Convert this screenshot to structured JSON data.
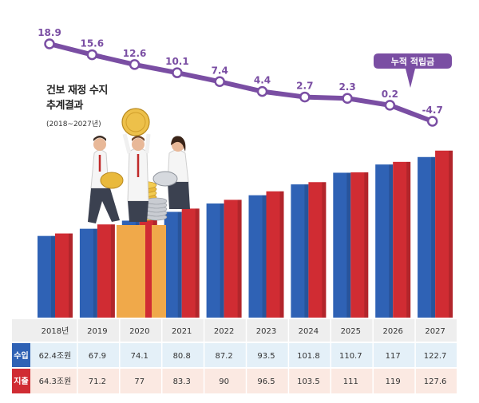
{
  "title_line1": "건보 재정 수지",
  "title_line2": "추계결과",
  "subtitle": "(2018~2027년)",
  "callout": "누적 적립금",
  "chart_data": {
    "type": "bar",
    "title": "건보 재정 수지 추계결과 (2018~2027년)",
    "categories": [
      "2018년",
      "2019",
      "2020",
      "2021",
      "2022",
      "2023",
      "2024",
      "2025",
      "2026",
      "2027"
    ],
    "series": [
      {
        "name": "수입",
        "values": [
          62.4,
          67.9,
          74.1,
          80.8,
          87.2,
          93.5,
          101.8,
          110.7,
          117,
          122.7
        ],
        "labels": [
          "62.4조원",
          "67.9",
          "74.1",
          "80.8",
          "87.2",
          "93.5",
          "101.8",
          "110.7",
          "117",
          "122.7"
        ],
        "color": "#2f62b5"
      },
      {
        "name": "지출",
        "values": [
          64.3,
          71.2,
          77,
          83.3,
          90,
          96.5,
          103.5,
          111,
          119,
          127.6
        ],
        "labels": [
          "64.3조원",
          "71.2",
          "77",
          "83.3",
          "90",
          "96.5",
          "103.5",
          "111",
          "119",
          "127.6"
        ],
        "color": "#d02c33"
      }
    ],
    "line": {
      "name": "누적 적립금",
      "values": [
        18.9,
        15.6,
        12.6,
        10.1,
        7.4,
        4.4,
        2.7,
        2.3,
        0.2,
        -4.7
      ],
      "color": "#7a4ea3"
    },
    "ylim": [
      0,
      135
    ]
  }
}
